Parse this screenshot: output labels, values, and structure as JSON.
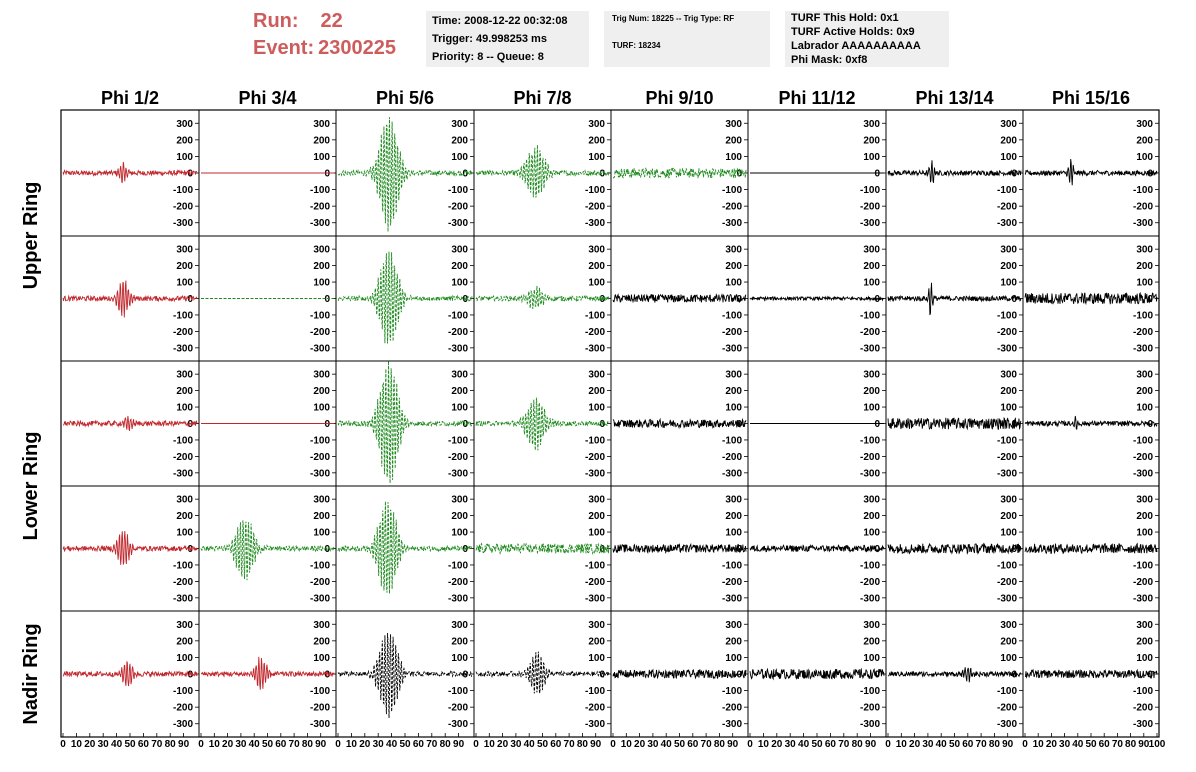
{
  "run_info": {
    "run_label": "Run:",
    "run_value": "22",
    "event_label": "Event:",
    "event_value": "2300225"
  },
  "time_panel": {
    "time": "Time: 2008-12-22 00:32:08",
    "trigger": "Trigger: 49.998253 ms",
    "priority": "Priority: 8 -- Queue: 8"
  },
  "trig_panel": {
    "trig_line": "Trig Num: 18225 -- Trig Type: RF",
    "turf_line": "TURF: 18234"
  },
  "turf_panel": {
    "this_hold": "TURF This Hold: 0x1",
    "active_holds": "TURF Active Holds: 0x9",
    "labrador": "Labrador AAAAAAAAAA",
    "phi_mask": "Phi Mask: 0xf8"
  },
  "column_headers": [
    "Phi 1/2",
    "Phi 3/4",
    "Phi 5/6",
    "Phi 7/8",
    "Phi 9/10",
    "Phi 11/12",
    "Phi 13/14",
    "Phi 15/16"
  ],
  "row_labels": [
    "Upper Ring",
    "Lower Ring",
    "Nadir Ring"
  ],
  "chart_data": {
    "type": "line",
    "title": "",
    "xlabel": "",
    "ylabel": "",
    "xlim": [
      0,
      100
    ],
    "ylim": [
      -380,
      380
    ],
    "x_ticks": [
      0,
      10,
      20,
      30,
      40,
      50,
      60,
      70,
      80,
      90,
      100
    ],
    "y_ticks": [
      300,
      200,
      100,
      0,
      -100,
      -200,
      -300
    ],
    "colors": {
      "red": "#c0282d",
      "green": "#1e8a1e",
      "black": "#000000"
    },
    "grid": [
      [
        "red:pulse:45:0.28:60",
        "red:flat",
        "green:pulse:38:0.12:350",
        "green:pulse:45:0.12:160",
        "green:noise:30",
        "black:flat",
        "black:pulse:33:0.5:90",
        "black:pulse:35:0.5:95"
      ],
      [
        "red:pulse:45:0.2:120",
        "green:flat",
        "green:pulse:38:0.12:300",
        "green:pulse:45:0.15:70",
        "black:noise:25",
        "black:noise:10",
        "black:pulse:32:0.6:110",
        "black:noise:35"
      ],
      [
        "red:pulse:48:0.22:40",
        "red:flat",
        "green:pulse:38:0.12:380",
        "green:pulse:45:0.12:160",
        "black:noise:25",
        "black:flat",
        "black:noise:35",
        "black:pulse:38:0.6:50"
      ],
      [
        "red:pulse:45:0.2:120",
        "green:pulse:33:0.12:190",
        "green:pulse:37:0.12:300",
        "green:noise:30",
        "black:noise:25",
        "black:noise:20",
        "black:noise:30",
        "black:noise:30"
      ],
      [
        "red:pulse:48:0.22:80",
        "red:pulse:45:0.2:100",
        "black:pulse:38:0.12:270",
        "black:pulse:46:0.15:130",
        "black:noise:25",
        "black:noise:30",
        "black:pulse:60:0.3:40",
        "black:noise:25"
      ]
    ]
  }
}
